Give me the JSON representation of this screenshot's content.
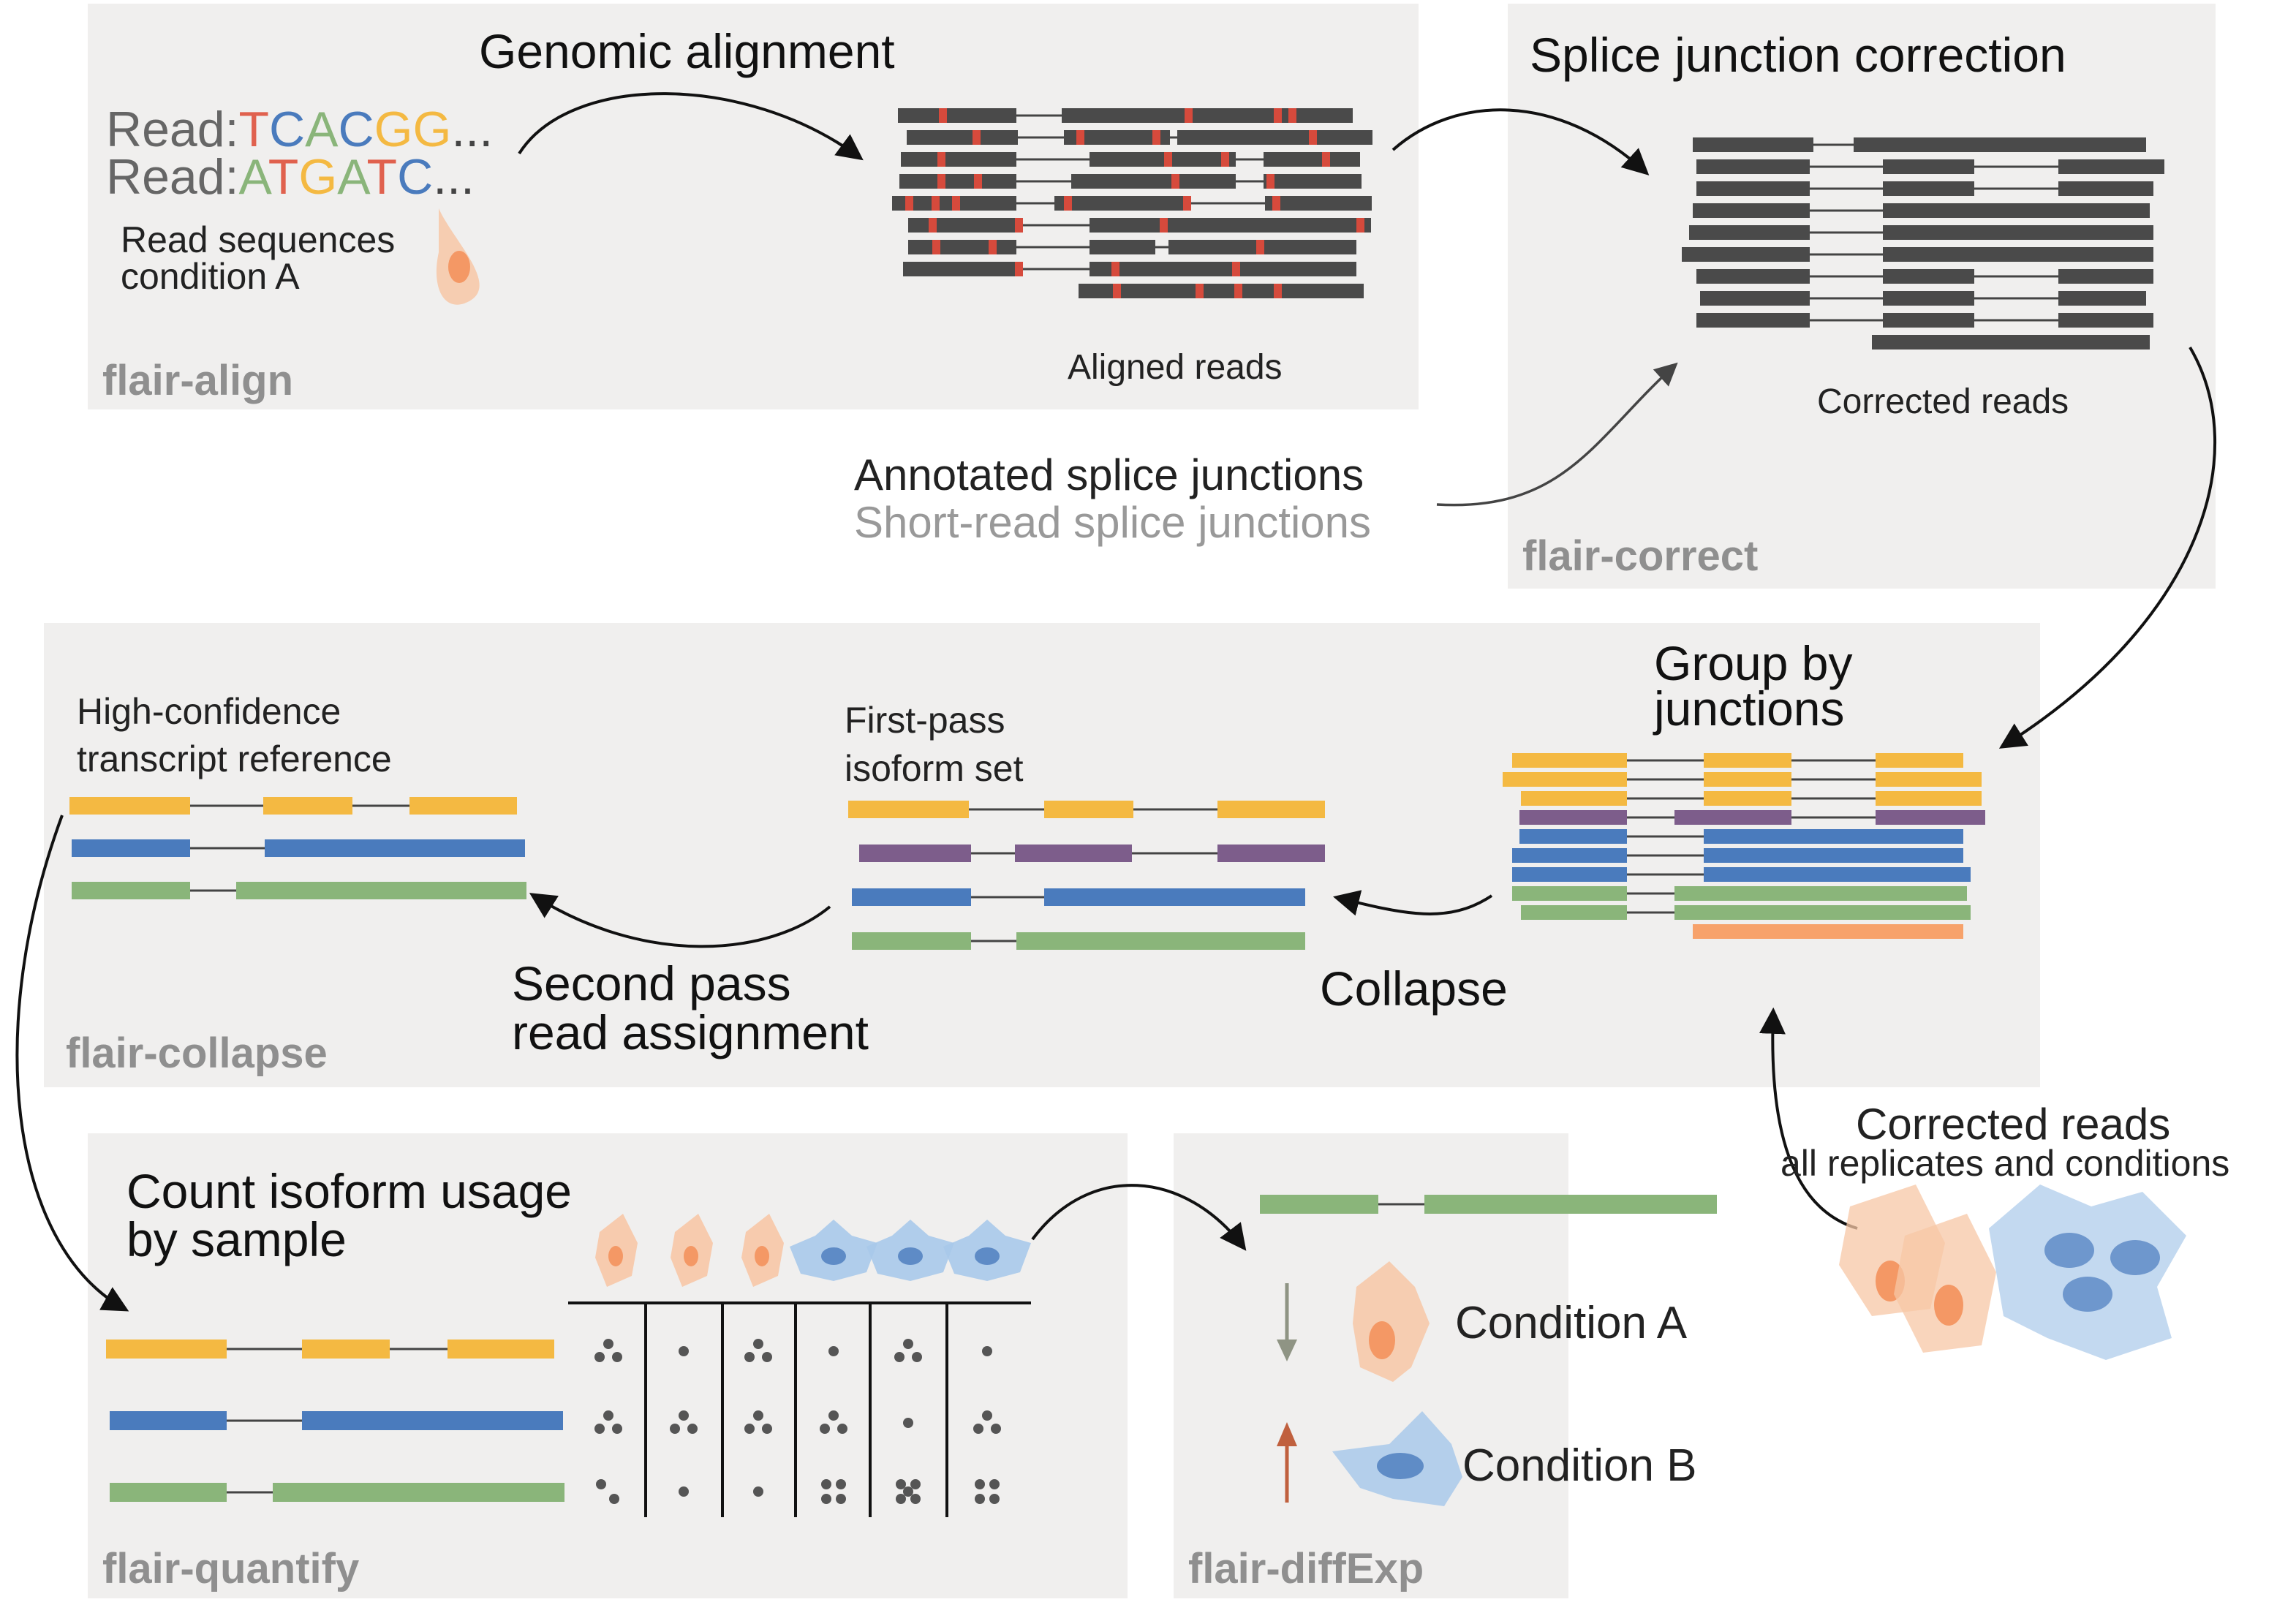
{
  "colors": {
    "panel": "#f0efee",
    "read_dark": "#4a4a4a",
    "mismatch": "#d64a3c",
    "isoform_orange": "#f4b942",
    "isoform_purple": "#7d5d8b",
    "isoform_blue": "#4a7bbd",
    "isoform_green": "#8ab57a",
    "isoform_salmon": "#f7a26b",
    "cell_orange": "#f7c7a6",
    "cell_blue": "#a9c9ea"
  },
  "panels": {
    "align": {
      "label": "flair-align"
    },
    "correct": {
      "label": "flair-correct"
    },
    "collapse": {
      "label": "flair-collapse"
    },
    "quantify": {
      "label": "flair-quantify"
    },
    "diffexp": {
      "label": "flair-diffExp"
    }
  },
  "align": {
    "read1_prefix": "Read:",
    "read1_bases": [
      "T",
      "C",
      "A",
      "C",
      "G",
      "G"
    ],
    "read2_prefix": "Read:",
    "read2_bases": [
      "A",
      "T",
      "G",
      "A",
      "T",
      "C"
    ],
    "ellipsis": "...",
    "read_sequences_line1": "Read sequences",
    "read_sequences_line2": "condition A",
    "step_title": "Genomic alignment",
    "aligned_label": "Aligned reads"
  },
  "base_colors": {
    "A": "#8ab57a",
    "C": "#4a7bbd",
    "G": "#f4b942",
    "T": "#e0614e"
  },
  "correct": {
    "step_title": "Splice junction correction",
    "corrected_label": "Corrected reads",
    "annotated_sj": "Annotated splice junctions",
    "short_read_sj": "Short-read splice junctions"
  },
  "collapse": {
    "group_title_line1": "Group by",
    "group_title_line2": "junctions",
    "collapse_label": "Collapse",
    "first_pass_line1": "First-pass",
    "first_pass_line2": "isoform set",
    "second_pass_line1": "Second pass",
    "second_pass_line2": "read assignment",
    "high_conf_line1": "High-confidence",
    "high_conf_line2": "transcript reference"
  },
  "corrected_input": {
    "line1": "Corrected reads",
    "line2": "all replicates and conditions"
  },
  "quantify": {
    "title_line1": "Count isoform usage",
    "title_line2": "by sample"
  },
  "diffexp": {
    "condition_a": "Condition A",
    "condition_b": "Condition B",
    "direction_a": "down",
    "direction_b": "up"
  }
}
